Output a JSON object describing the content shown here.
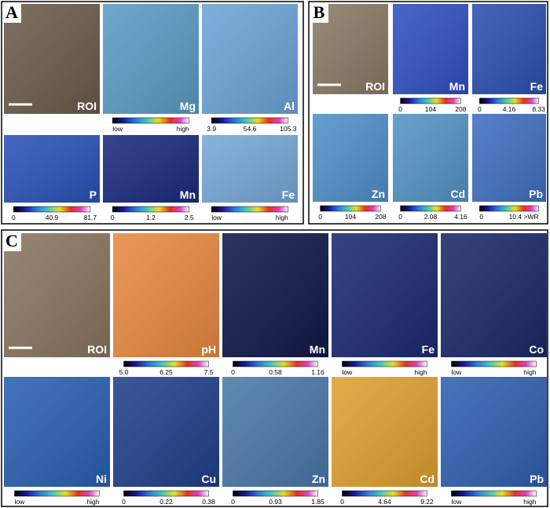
{
  "panels": [
    {
      "label": "A",
      "tiles": [
        {
          "label": "ROI"
        },
        {
          "label": "Mg",
          "scale": [
            "low",
            "high"
          ]
        },
        {
          "label": "Al",
          "scale": [
            "3.9",
            "54.6",
            "105.3"
          ]
        },
        {
          "label": "P",
          "scale": [
            "0",
            "40.9",
            "81.7"
          ]
        },
        {
          "label": "Mn",
          "scale": [
            "0",
            "1.2",
            "2.5"
          ]
        },
        {
          "label": "Fe",
          "scale": [
            "low",
            "high"
          ]
        }
      ]
    },
    {
      "label": "B",
      "tiles": [
        {
          "label": "ROI"
        },
        {
          "label": "Mn",
          "scale": [
            "0",
            "104",
            "208"
          ]
        },
        {
          "label": "Fe",
          "scale": [
            "0",
            "4.16",
            "8.33"
          ]
        },
        {
          "label": "Zn",
          "scale": [
            "0",
            "104",
            "208"
          ]
        },
        {
          "label": "Cd",
          "scale": [
            "0",
            "2.08",
            "4.16"
          ]
        },
        {
          "label": "Pb",
          "scale": [
            "0",
            "10.4 >WR"
          ]
        }
      ]
    },
    {
      "label": "C",
      "tiles": [
        {
          "label": "ROI"
        },
        {
          "label": "pH",
          "scale": [
            "5.0",
            "6.25",
            "7.5"
          ]
        },
        {
          "label": "Mn",
          "scale": [
            "0",
            "0.58",
            "1.16"
          ]
        },
        {
          "label": "Fe",
          "scale": [
            "low",
            "high"
          ]
        },
        {
          "label": "Co",
          "scale": [
            "low",
            "high"
          ]
        },
        {
          "label": "Ni",
          "scale": [
            "low",
            "high"
          ]
        },
        {
          "label": "Cu",
          "scale": [
            "0",
            "0.22",
            "0.38"
          ]
        },
        {
          "label": "Zn",
          "scale": [
            "0",
            "0.93",
            "1.85"
          ]
        },
        {
          "label": "Cd",
          "scale": [
            "0",
            "4.64",
            "9.22"
          ]
        },
        {
          "label": "Pb",
          "scale": [
            "low",
            "high"
          ]
        }
      ]
    }
  ]
}
